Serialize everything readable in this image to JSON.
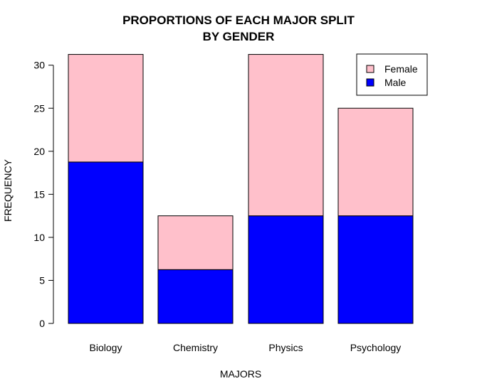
{
  "chart_data": {
    "type": "bar",
    "stacked": true,
    "title_lines": [
      "PROPORTIONS OF EACH MAJOR SPLIT",
      "BY GENDER"
    ],
    "xlabel": "MAJORS",
    "ylabel": "FREQUENCY",
    "categories": [
      "Biology",
      "Chemistry",
      "Physics",
      "Psychology"
    ],
    "series": [
      {
        "name": "Male",
        "color": "#0000ff",
        "values": [
          18.75,
          6.25,
          12.5,
          12.5
        ]
      },
      {
        "name": "Female",
        "color": "#ffc0cb",
        "values": [
          12.5,
          6.25,
          18.75,
          12.5
        ]
      }
    ],
    "ylim": [
      0,
      31.25
    ],
    "yticks": [
      0,
      5,
      10,
      15,
      20,
      25,
      30
    ],
    "grid": false,
    "legend": {
      "position": "top-right",
      "entries": [
        {
          "label": "Female",
          "color": "#ffc0cb"
        },
        {
          "label": "Male",
          "color": "#0000ff"
        }
      ]
    }
  }
}
